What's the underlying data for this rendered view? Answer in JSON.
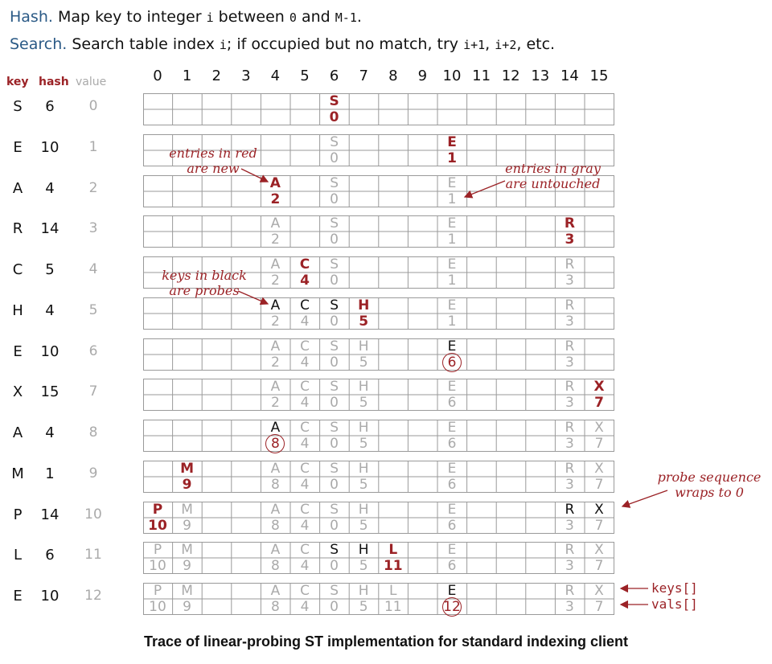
{
  "header": {
    "hash_term": "Hash.",
    "hash_text_1": "Map key to integer",
    "hash_code_i": "i",
    "hash_text_2": "between",
    "hash_code_0": "0",
    "hash_text_3": "and",
    "hash_code_m": "M-1",
    "hash_text_4": ".",
    "search_term": "Search.",
    "search_text_1": "Search table index",
    "search_code_i": "i",
    "search_text_2": "; if occupied but no match, try",
    "search_code_i1": "i+1",
    "search_text_3": ",",
    "search_code_i2": "i+2",
    "search_text_4": ", etc."
  },
  "table_labels": {
    "key": "key",
    "hash": "hash",
    "value": "value"
  },
  "indices": [
    "0",
    "1",
    "2",
    "3",
    "4",
    "5",
    "6",
    "7",
    "8",
    "9",
    "10",
    "11",
    "12",
    "13",
    "14",
    "15"
  ],
  "rows": [
    {
      "key": "S",
      "hash": "6",
      "value": "0",
      "keys": [
        null,
        null,
        null,
        null,
        null,
        null,
        [
          "S",
          "new"
        ],
        null,
        null,
        null,
        null,
        null,
        null,
        null,
        null,
        null
      ],
      "vals": [
        null,
        null,
        null,
        null,
        null,
        null,
        [
          "0",
          "new"
        ],
        null,
        null,
        null,
        null,
        null,
        null,
        null,
        null,
        null
      ]
    },
    {
      "key": "E",
      "hash": "10",
      "value": "1",
      "keys": [
        null,
        null,
        null,
        null,
        null,
        null,
        [
          "S",
          "g"
        ],
        null,
        null,
        null,
        [
          "E",
          "new"
        ],
        null,
        null,
        null,
        null,
        null
      ],
      "vals": [
        null,
        null,
        null,
        null,
        null,
        null,
        [
          "0",
          "g"
        ],
        null,
        null,
        null,
        [
          "1",
          "new"
        ],
        null,
        null,
        null,
        null,
        null
      ]
    },
    {
      "key": "A",
      "hash": "4",
      "value": "2",
      "keys": [
        null,
        null,
        null,
        null,
        [
          "A",
          "new"
        ],
        null,
        [
          "S",
          "g"
        ],
        null,
        null,
        null,
        [
          "E",
          "g"
        ],
        null,
        null,
        null,
        null,
        null
      ],
      "vals": [
        null,
        null,
        null,
        null,
        [
          "2",
          "new"
        ],
        null,
        [
          "0",
          "g"
        ],
        null,
        null,
        null,
        [
          "1",
          "g"
        ],
        null,
        null,
        null,
        null,
        null
      ]
    },
    {
      "key": "R",
      "hash": "14",
      "value": "3",
      "keys": [
        null,
        null,
        null,
        null,
        [
          "A",
          "g"
        ],
        null,
        [
          "S",
          "g"
        ],
        null,
        null,
        null,
        [
          "E",
          "g"
        ],
        null,
        null,
        null,
        [
          "R",
          "new"
        ],
        null
      ],
      "vals": [
        null,
        null,
        null,
        null,
        [
          "2",
          "g"
        ],
        null,
        [
          "0",
          "g"
        ],
        null,
        null,
        null,
        [
          "1",
          "g"
        ],
        null,
        null,
        null,
        [
          "3",
          "new"
        ],
        null
      ]
    },
    {
      "key": "C",
      "hash": "5",
      "value": "4",
      "keys": [
        null,
        null,
        null,
        null,
        [
          "A",
          "g"
        ],
        [
          "C",
          "new"
        ],
        [
          "S",
          "g"
        ],
        null,
        null,
        null,
        [
          "E",
          "g"
        ],
        null,
        null,
        null,
        [
          "R",
          "g"
        ],
        null
      ],
      "vals": [
        null,
        null,
        null,
        null,
        [
          "2",
          "g"
        ],
        [
          "4",
          "new"
        ],
        [
          "0",
          "g"
        ],
        null,
        null,
        null,
        [
          "1",
          "g"
        ],
        null,
        null,
        null,
        [
          "3",
          "g"
        ],
        null
      ]
    },
    {
      "key": "H",
      "hash": "4",
      "value": "5",
      "keys": [
        null,
        null,
        null,
        null,
        [
          "A",
          "probe"
        ],
        [
          "C",
          "probe"
        ],
        [
          "S",
          "probe"
        ],
        [
          "H",
          "new"
        ],
        null,
        null,
        [
          "E",
          "g"
        ],
        null,
        null,
        null,
        [
          "R",
          "g"
        ],
        null
      ],
      "vals": [
        null,
        null,
        null,
        null,
        [
          "2",
          "g"
        ],
        [
          "4",
          "g"
        ],
        [
          "0",
          "g"
        ],
        [
          "5",
          "new"
        ],
        null,
        null,
        [
          "1",
          "g"
        ],
        null,
        null,
        null,
        [
          "3",
          "g"
        ],
        null
      ]
    },
    {
      "key": "E",
      "hash": "10",
      "value": "6",
      "keys": [
        null,
        null,
        null,
        null,
        [
          "A",
          "g"
        ],
        [
          "C",
          "g"
        ],
        [
          "S",
          "g"
        ],
        [
          "H",
          "g"
        ],
        null,
        null,
        [
          "E",
          "probe"
        ],
        null,
        null,
        null,
        [
          "R",
          "g"
        ],
        null
      ],
      "vals": [
        null,
        null,
        null,
        null,
        [
          "2",
          "g"
        ],
        [
          "4",
          "g"
        ],
        [
          "0",
          "g"
        ],
        [
          "5",
          "g"
        ],
        null,
        null,
        [
          "6",
          "circle"
        ],
        null,
        null,
        null,
        [
          "3",
          "g"
        ],
        null
      ]
    },
    {
      "key": "X",
      "hash": "15",
      "value": "7",
      "keys": [
        null,
        null,
        null,
        null,
        [
          "A",
          "g"
        ],
        [
          "C",
          "g"
        ],
        [
          "S",
          "g"
        ],
        [
          "H",
          "g"
        ],
        null,
        null,
        [
          "E",
          "g"
        ],
        null,
        null,
        null,
        [
          "R",
          "g"
        ],
        [
          "X",
          "new"
        ]
      ],
      "vals": [
        null,
        null,
        null,
        null,
        [
          "2",
          "g"
        ],
        [
          "4",
          "g"
        ],
        [
          "0",
          "g"
        ],
        [
          "5",
          "g"
        ],
        null,
        null,
        [
          "6",
          "g"
        ],
        null,
        null,
        null,
        [
          "3",
          "g"
        ],
        [
          "7",
          "new"
        ]
      ]
    },
    {
      "key": "A",
      "hash": "4",
      "value": "8",
      "keys": [
        null,
        null,
        null,
        null,
        [
          "A",
          "probe"
        ],
        [
          "C",
          "g"
        ],
        [
          "S",
          "g"
        ],
        [
          "H",
          "g"
        ],
        null,
        null,
        [
          "E",
          "g"
        ],
        null,
        null,
        null,
        [
          "R",
          "g"
        ],
        [
          "X",
          "g"
        ]
      ],
      "vals": [
        null,
        null,
        null,
        null,
        [
          "8",
          "circle"
        ],
        [
          "4",
          "g"
        ],
        [
          "0",
          "g"
        ],
        [
          "5",
          "g"
        ],
        null,
        null,
        [
          "6",
          "g"
        ],
        null,
        null,
        null,
        [
          "3",
          "g"
        ],
        [
          "7",
          "g"
        ]
      ]
    },
    {
      "key": "M",
      "hash": "1",
      "value": "9",
      "keys": [
        null,
        [
          "M",
          "new"
        ],
        null,
        null,
        [
          "A",
          "g"
        ],
        [
          "C",
          "g"
        ],
        [
          "S",
          "g"
        ],
        [
          "H",
          "g"
        ],
        null,
        null,
        [
          "E",
          "g"
        ],
        null,
        null,
        null,
        [
          "R",
          "g"
        ],
        [
          "X",
          "g"
        ]
      ],
      "vals": [
        null,
        [
          "9",
          "new"
        ],
        null,
        null,
        [
          "8",
          "g"
        ],
        [
          "4",
          "g"
        ],
        [
          "0",
          "g"
        ],
        [
          "5",
          "g"
        ],
        null,
        null,
        [
          "6",
          "g"
        ],
        null,
        null,
        null,
        [
          "3",
          "g"
        ],
        [
          "7",
          "g"
        ]
      ]
    },
    {
      "key": "P",
      "hash": "14",
      "value": "10",
      "keys": [
        [
          "P",
          "new"
        ],
        [
          "M",
          "g"
        ],
        null,
        null,
        [
          "A",
          "g"
        ],
        [
          "C",
          "g"
        ],
        [
          "S",
          "g"
        ],
        [
          "H",
          "g"
        ],
        null,
        null,
        [
          "E",
          "g"
        ],
        null,
        null,
        null,
        [
          "R",
          "probe"
        ],
        [
          "X",
          "probe"
        ]
      ],
      "vals": [
        [
          "10",
          "new"
        ],
        [
          "9",
          "g"
        ],
        null,
        null,
        [
          "8",
          "g"
        ],
        [
          "4",
          "g"
        ],
        [
          "0",
          "g"
        ],
        [
          "5",
          "g"
        ],
        null,
        null,
        [
          "6",
          "g"
        ],
        null,
        null,
        null,
        [
          "3",
          "g"
        ],
        [
          "7",
          "g"
        ]
      ]
    },
    {
      "key": "L",
      "hash": "6",
      "value": "11",
      "keys": [
        [
          "P",
          "g"
        ],
        [
          "M",
          "g"
        ],
        null,
        null,
        [
          "A",
          "g"
        ],
        [
          "C",
          "g"
        ],
        [
          "S",
          "probe"
        ],
        [
          "H",
          "probe"
        ],
        [
          "L",
          "new"
        ],
        null,
        [
          "E",
          "g"
        ],
        null,
        null,
        null,
        [
          "R",
          "g"
        ],
        [
          "X",
          "g"
        ]
      ],
      "vals": [
        [
          "10",
          "g"
        ],
        [
          "9",
          "g"
        ],
        null,
        null,
        [
          "8",
          "g"
        ],
        [
          "4",
          "g"
        ],
        [
          "0",
          "g"
        ],
        [
          "5",
          "g"
        ],
        [
          "11",
          "new"
        ],
        null,
        [
          "6",
          "g"
        ],
        null,
        null,
        null,
        [
          "3",
          "g"
        ],
        [
          "7",
          "g"
        ]
      ]
    },
    {
      "key": "E",
      "hash": "10",
      "value": "12",
      "keys": [
        [
          "P",
          "g"
        ],
        [
          "M",
          "g"
        ],
        null,
        null,
        [
          "A",
          "g"
        ],
        [
          "C",
          "g"
        ],
        [
          "S",
          "g"
        ],
        [
          "H",
          "g"
        ],
        [
          "L",
          "g"
        ],
        null,
        [
          "E",
          "probe"
        ],
        null,
        null,
        null,
        [
          "R",
          "g"
        ],
        [
          "X",
          "g"
        ]
      ],
      "vals": [
        [
          "10",
          "g"
        ],
        [
          "9",
          "g"
        ],
        null,
        null,
        [
          "8",
          "g"
        ],
        [
          "4",
          "g"
        ],
        [
          "0",
          "g"
        ],
        [
          "5",
          "g"
        ],
        [
          "11",
          "g"
        ],
        null,
        [
          "12",
          "circle"
        ],
        null,
        null,
        null,
        [
          "3",
          "g"
        ],
        [
          "7",
          "g"
        ]
      ]
    }
  ],
  "annotations": {
    "new_entries": "entries in red\nare new",
    "untouched": "entries in gray\nare untouched",
    "probes": "keys in black\nare probes",
    "wraps": "probe sequence\nwraps to 0",
    "keys_array": "keys[]",
    "vals_array": "vals[]"
  },
  "caption": "Trace of  linear-probing ST implementation for standard indexing client",
  "colors": {
    "new": "#9b2226",
    "gray": "#aaaaaa",
    "probe": "#111111",
    "grid": "#9a9a9a"
  }
}
